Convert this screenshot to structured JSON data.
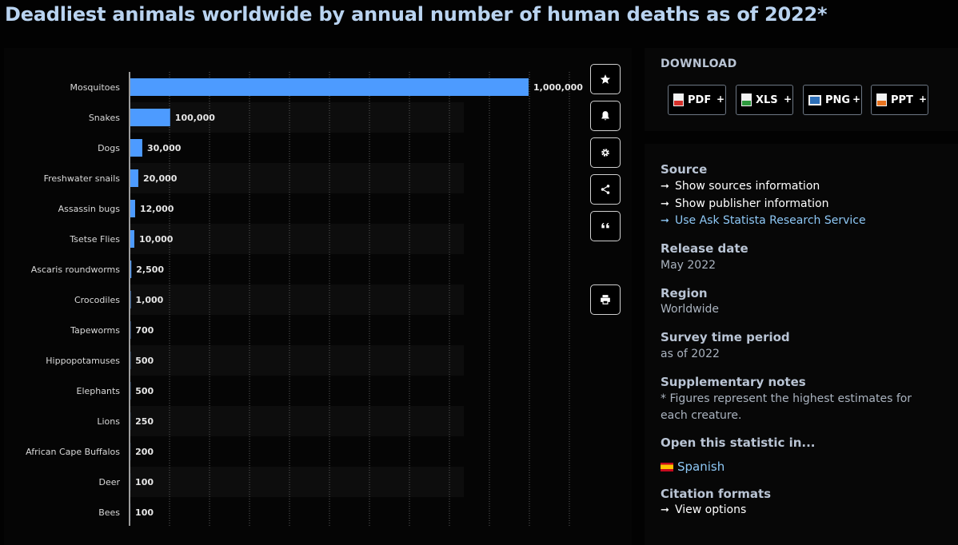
{
  "page": {
    "title": "Deadliest animals worldwide by annual number of human deaths as of 2022*"
  },
  "colors": {
    "bar": "#4d9bff",
    "background": "#020202",
    "heading": "#b9d3f0"
  },
  "chart_data": {
    "type": "bar",
    "orientation": "horizontal",
    "title": "",
    "xlabel": "",
    "ylabel": "",
    "xlim": [
      0,
      1000000
    ],
    "grid": true,
    "categories": [
      "Mosquitoes",
      "Snakes",
      "Dogs",
      "Freshwater snails",
      "Assassin bugs",
      "Tsetse Flies",
      "Ascaris roundworms",
      "Crocodiles",
      "Tapeworms",
      "Hippopotamuses",
      "Elephants",
      "Lions",
      "African Cape Buffalos",
      "Deer",
      "Bees"
    ],
    "values": [
      1000000,
      100000,
      30000,
      20000,
      12000,
      10000,
      2500,
      1000,
      700,
      500,
      500,
      250,
      200,
      100,
      100
    ],
    "data_labels": [
      "1,000,000",
      "100,000",
      "30,000",
      "20,000",
      "12,000",
      "10,000",
      "2,500",
      "1,000",
      "700",
      "500",
      "500",
      "250",
      "200",
      "100",
      "100"
    ]
  },
  "toolbar": {
    "icons": [
      "star-icon",
      "bell-icon",
      "gear-icon",
      "share-icon",
      "quote-icon",
      "spain-flag-icon",
      "printer-icon"
    ]
  },
  "download": {
    "title": "DOWNLOAD",
    "buttons": [
      {
        "label": "PDF",
        "plus": "+",
        "icon": "pdf-file-icon"
      },
      {
        "label": "XLS",
        "plus": "+",
        "icon": "xls-file-icon"
      },
      {
        "label": "PNG",
        "plus": "+",
        "icon": "png-image-icon"
      },
      {
        "label": "PPT",
        "plus": "+",
        "icon": "ppt-file-icon"
      }
    ]
  },
  "info": {
    "source_heading": "Source",
    "source_links": [
      "Show sources information",
      "Show publisher information",
      "Use Ask Statista Research Service"
    ],
    "release_heading": "Release date",
    "release_value": "May 2022",
    "region_heading": "Region",
    "region_value": "Worldwide",
    "survey_heading": "Survey time period",
    "survey_value": "as of 2022",
    "notes_heading": "Supplementary notes",
    "notes_value": "* Figures represent the highest estimates for each creature.",
    "open_heading": "Open this statistic in...",
    "open_value": "Spanish",
    "citation_heading": "Citation formats",
    "citation_value": "View options"
  }
}
